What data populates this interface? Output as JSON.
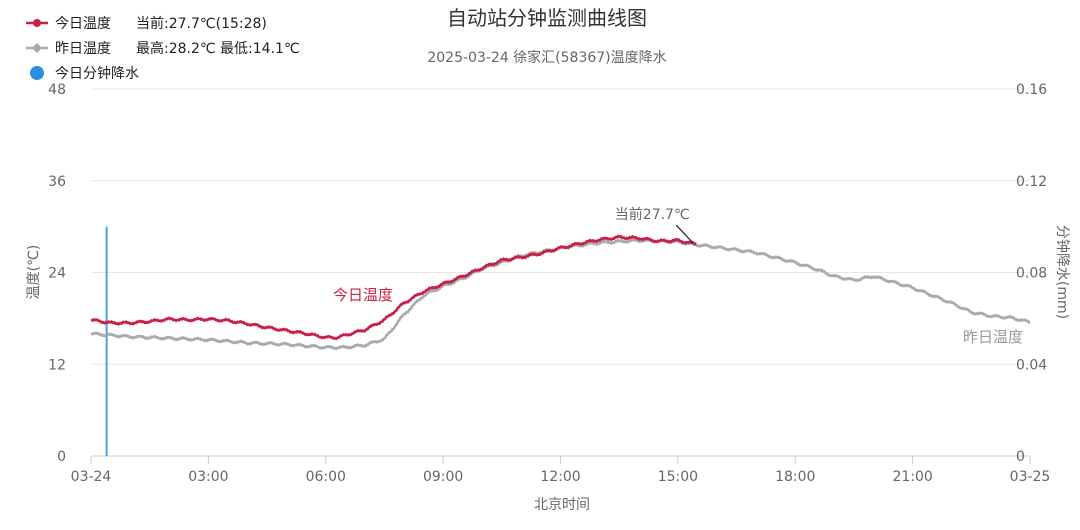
{
  "chart_data": {
    "type": "line",
    "title": "自动站分钟监测曲线图",
    "subtitle": "2025-03-24 徐家汇(58367)温度降水",
    "legend": [
      {
        "name": "今日温度",
        "info": "当前:27.7℃(15:28)",
        "color": "#c8204a",
        "marker": "circle"
      },
      {
        "name": "昨日温度",
        "info": "最高:28.2℃ 最低:14.1℃",
        "color": "#aaaaaa",
        "marker": "diamond"
      },
      {
        "name": "今日分钟降水",
        "info": "",
        "color": "#2b8fe0",
        "marker": "circle"
      }
    ],
    "xlabel": "北京时间",
    "x_tick_labels": [
      "03-24",
      "03:00",
      "06:00",
      "09:00",
      "12:00",
      "15:00",
      "18:00",
      "21:00",
      "03-25"
    ],
    "x_ticks_hours": [
      0,
      3,
      6,
      9,
      12,
      15,
      18,
      21,
      24
    ],
    "x_range_hours": [
      0,
      24
    ],
    "ylabel_left": "温度(℃)",
    "ylim_left": [
      0,
      48
    ],
    "y_ticks_left": [
      "0",
      "12",
      "24",
      "36",
      "48"
    ],
    "ylabel_right": "分钟降水(mm)",
    "ylim_right": [
      0,
      0.16
    ],
    "y_ticks_right": [
      "0",
      "0.04",
      "0.08",
      "0.12",
      "0.16"
    ],
    "grid": true,
    "legend_position": "top-left",
    "annotations": [
      {
        "text": "当前27.7℃",
        "x_hours": 15.47,
        "y": 27.7
      }
    ],
    "series_labels": [
      {
        "text": "今日温度",
        "color": "#c8204a"
      },
      {
        "text": "昨日温度",
        "color": "#999999"
      }
    ],
    "series": [
      {
        "name": "今日温度",
        "axis": "left",
        "color": "#c8204a",
        "x_hours": [
          0.0,
          0.5,
          1.0,
          1.5,
          2.0,
          2.5,
          3.0,
          3.5,
          4.0,
          4.5,
          5.0,
          5.5,
          6.0,
          6.3,
          6.5,
          7.0,
          7.5,
          8.0,
          8.5,
          9.0,
          9.5,
          10.0,
          10.5,
          11.0,
          11.5,
          12.0,
          12.5,
          13.0,
          13.5,
          14.0,
          14.5,
          15.0,
          15.47
        ],
        "values": [
          17.8,
          17.4,
          17.4,
          17.6,
          17.9,
          17.8,
          17.9,
          17.7,
          17.3,
          16.8,
          16.4,
          16.0,
          15.5,
          15.5,
          15.8,
          16.5,
          17.8,
          20.0,
          21.5,
          22.5,
          23.5,
          24.6,
          25.6,
          26.0,
          26.5,
          27.2,
          27.8,
          28.3,
          28.6,
          28.5,
          28.1,
          28.2,
          27.7
        ]
      },
      {
        "name": "昨日温度",
        "axis": "left",
        "color": "#aaaaaa",
        "x_hours": [
          0.0,
          1.0,
          2.0,
          3.0,
          4.0,
          5.0,
          6.0,
          6.5,
          7.0,
          7.5,
          8.0,
          8.5,
          9.0,
          9.5,
          10.0,
          10.5,
          11.0,
          12.0,
          13.0,
          14.0,
          14.5,
          15.0,
          15.5,
          16.0,
          17.0,
          18.0,
          18.5,
          19.0,
          19.5,
          20.0,
          21.0,
          22.0,
          22.5,
          23.0,
          23.5,
          24.0
        ],
        "values": [
          16.0,
          15.6,
          15.4,
          15.2,
          14.8,
          14.6,
          14.2,
          14.2,
          14.5,
          15.3,
          18.5,
          21.0,
          22.2,
          23.2,
          24.5,
          25.3,
          26.2,
          27.2,
          27.9,
          28.2,
          28.1,
          28.0,
          27.6,
          27.3,
          26.6,
          25.3,
          24.5,
          23.5,
          23.0,
          23.5,
          22.0,
          20.0,
          18.8,
          18.3,
          18.1,
          17.5
        ]
      },
      {
        "name": "今日分钟降水",
        "axis": "right",
        "color": "#4aa3df",
        "type": "bar",
        "x_hours": [
          0.4
        ],
        "values": [
          0.1
        ]
      }
    ]
  }
}
